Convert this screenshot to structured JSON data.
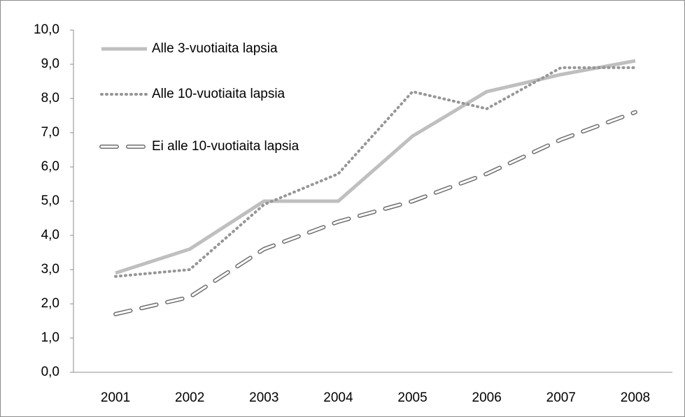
{
  "chart_data": {
    "type": "line",
    "categories": [
      "2001",
      "2002",
      "2003",
      "2004",
      "2005",
      "2006",
      "2007",
      "2008"
    ],
    "series": [
      {
        "name": "Alle 3-vuotiaita lapsia",
        "color": "#bfbfbf",
        "style": "solid",
        "values": [
          2.9,
          3.6,
          5.0,
          5.0,
          6.9,
          8.2,
          8.7,
          9.1
        ]
      },
      {
        "name": "Alle 10-vuotiaita lapsia",
        "color": "#969696",
        "style": "dotted",
        "values": [
          2.8,
          3.0,
          4.9,
          5.8,
          8.2,
          7.7,
          8.9,
          8.9
        ]
      },
      {
        "name": "Ei alle 10-vuotiaita lapsia",
        "color": "#6e6e6e",
        "style": "dashed",
        "values": [
          1.7,
          2.2,
          3.6,
          4.4,
          5.0,
          5.8,
          6.8,
          7.6
        ]
      }
    ],
    "ylim": [
      0,
      10
    ],
    "yticks": [
      {
        "value": 0,
        "label": "0,0"
      },
      {
        "value": 1,
        "label": "1,0"
      },
      {
        "value": 2,
        "label": "2,0"
      },
      {
        "value": 3,
        "label": "3,0"
      },
      {
        "value": 4,
        "label": "4,0"
      },
      {
        "value": 5,
        "label": "5,0"
      },
      {
        "value": 6,
        "label": "6,0"
      },
      {
        "value": 7,
        "label": "7,0"
      },
      {
        "value": 8,
        "label": "8,0"
      },
      {
        "value": 9,
        "label": "9,0"
      },
      {
        "value": 10,
        "label": "10,0"
      }
    ],
    "grid": false,
    "legend": "top-left"
  }
}
